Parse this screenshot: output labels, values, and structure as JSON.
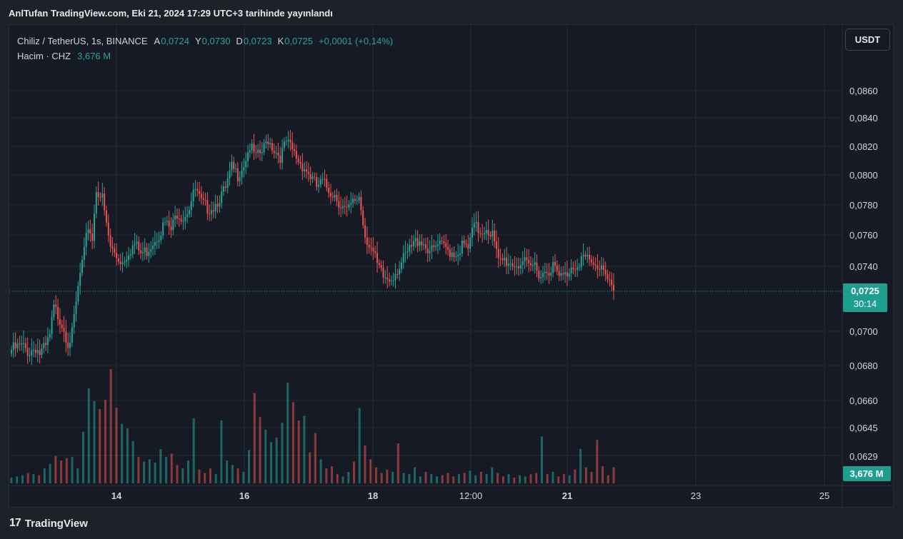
{
  "header": {
    "publish_text": "AnlTufan TradingView.com, Eki 21, 2024 17:29 UTC+3 tarihinde yayınlandı"
  },
  "legend": {
    "symbol": "Chiliz / TetherUS, 1s, BINANCE",
    "open_label": "A",
    "open": "0,0724",
    "high_label": "Y",
    "high": "0,0730",
    "low_label": "D",
    "low": "0,0723",
    "close_label": "K",
    "close": "0,0725",
    "change": "+0,0001 (+0,14%)",
    "volume_label": "Hacim · CHZ",
    "volume_value": "3,676 M"
  },
  "currency_button": "USDT",
  "price_badge": {
    "price": "0,0725",
    "countdown": "30:14"
  },
  "volume_badge": "3,676 M",
  "footer": {
    "brand": "TradingView",
    "logo_mark": "17"
  },
  "colors": {
    "up": "#26a69a",
    "down": "#ef5350",
    "background": "#161a25",
    "grid": "#242a35",
    "axis_text": "#d1d4dc"
  },
  "chart_data": {
    "type": "candlestick",
    "symbol": "Chiliz / TetherUS",
    "interval": "1s",
    "exchange": "BINANCE",
    "grid": true,
    "x_tick_labels": [
      "14",
      "16",
      "18",
      "12:00",
      "21",
      "23",
      "25"
    ],
    "y_tick_labels": [
      "0,0860",
      "0,0840",
      "0,0820",
      "0,0800",
      "0,0780",
      "0,0760",
      "0,0740",
      "0,0700",
      "0,0680",
      "0,0660",
      "0,0645",
      "0,0629"
    ],
    "last_price": 0.0725,
    "volume_last": "3,676 M",
    "close_path": [
      [
        0,
        0.0689
      ],
      [
        5,
        0.0691
      ],
      [
        9,
        0.0688
      ],
      [
        12,
        0.0691
      ],
      [
        14,
        0.0687
      ],
      [
        17,
        0.069
      ],
      [
        19,
        0.0697
      ],
      [
        21,
        0.0714
      ],
      [
        24,
        0.0708
      ],
      [
        26,
        0.0702
      ],
      [
        28,
        0.0694
      ],
      [
        30,
        0.0698
      ],
      [
        32,
        0.0717
      ],
      [
        34,
        0.0735
      ],
      [
        36,
        0.0748
      ],
      [
        38,
        0.0766
      ],
      [
        40,
        0.0758
      ],
      [
        42,
        0.0791
      ],
      [
        45,
        0.0784
      ],
      [
        47,
        0.0766
      ],
      [
        49,
        0.0752
      ],
      [
        52,
        0.0746
      ],
      [
        55,
        0.0743
      ],
      [
        58,
        0.075
      ],
      [
        61,
        0.0754
      ],
      [
        64,
        0.0748
      ],
      [
        67,
        0.075
      ],
      [
        70,
        0.0756
      ],
      [
        73,
        0.0761
      ],
      [
        76,
        0.0768
      ],
      [
        79,
        0.0763
      ],
      [
        82,
        0.0775
      ],
      [
        85,
        0.0772
      ],
      [
        88,
        0.0779
      ],
      [
        91,
        0.079
      ],
      [
        94,
        0.0781
      ],
      [
        97,
        0.0778
      ],
      [
        100,
        0.0779
      ],
      [
        103,
        0.0785
      ],
      [
        106,
        0.079
      ],
      [
        109,
        0.0805
      ],
      [
        112,
        0.08
      ],
      [
        115,
        0.0808
      ],
      [
        118,
        0.082
      ],
      [
        121,
        0.0812
      ],
      [
        124,
        0.0816
      ],
      [
        127,
        0.0825
      ],
      [
        130,
        0.0818
      ],
      [
        133,
        0.0813
      ],
      [
        136,
        0.0823
      ],
      [
        139,
        0.0817
      ],
      [
        142,
        0.081
      ],
      [
        145,
        0.0805
      ],
      [
        148,
        0.0799
      ],
      [
        151,
        0.0792
      ],
      [
        154,
        0.0795
      ],
      [
        157,
        0.079
      ],
      [
        160,
        0.0787
      ],
      [
        163,
        0.078
      ],
      [
        166,
        0.0775
      ],
      [
        169,
        0.0781
      ],
      [
        172,
        0.0786
      ],
      [
        175,
        0.076
      ],
      [
        178,
        0.0752
      ],
      [
        181,
        0.074
      ],
      [
        184,
        0.0733
      ],
      [
        187,
        0.0732
      ],
      [
        190,
        0.0737
      ],
      [
        193,
        0.0742
      ],
      [
        196,
        0.0748
      ],
      [
        199,
        0.0754
      ],
      [
        202,
        0.0758
      ],
      [
        205,
        0.0753
      ],
      [
        208,
        0.0749
      ],
      [
        211,
        0.0753
      ],
      [
        214,
        0.0752
      ],
      [
        217,
        0.075
      ],
      [
        220,
        0.0748
      ],
      [
        223,
        0.0753
      ],
      [
        226,
        0.0751
      ],
      [
        229,
        0.0766
      ],
      [
        232,
        0.0762
      ],
      [
        235,
        0.0765
      ],
      [
        238,
        0.076
      ],
      [
        241,
        0.0742
      ],
      [
        244,
        0.0744
      ],
      [
        247,
        0.0742
      ],
      [
        250,
        0.0741
      ],
      [
        253,
        0.0743
      ],
      [
        256,
        0.0738
      ],
      [
        259,
        0.0741
      ],
      [
        262,
        0.0735
      ],
      [
        265,
        0.0738
      ],
      [
        268,
        0.074
      ],
      [
        271,
        0.0733
      ],
      [
        274,
        0.0734
      ],
      [
        277,
        0.074
      ],
      [
        280,
        0.0742
      ],
      [
        283,
        0.0746
      ],
      [
        286,
        0.0742
      ],
      [
        289,
        0.0739
      ],
      [
        292,
        0.0741
      ],
      [
        295,
        0.0735
      ],
      [
        298,
        0.0725
      ]
    ],
    "volume_relative": [
      0.05,
      0.06,
      0.07,
      0.09,
      0.08,
      0.07,
      0.13,
      0.17,
      0.24,
      0.2,
      0.22,
      0.23,
      0.13,
      0.45,
      0.83,
      0.72,
      0.65,
      0.73,
      1.0,
      0.66,
      0.52,
      0.48,
      0.37,
      0.23,
      0.19,
      0.21,
      0.18,
      0.3,
      0.23,
      0.26,
      0.16,
      0.13,
      0.2,
      0.57,
      0.12,
      0.09,
      0.13,
      0.08,
      0.55,
      0.2,
      0.16,
      0.13,
      0.1,
      0.29,
      0.79,
      0.58,
      0.47,
      0.36,
      0.4,
      0.53,
      0.88,
      0.71,
      0.55,
      0.59,
      0.27,
      0.44,
      0.21,
      0.13,
      0.15,
      0.08,
      0.06,
      0.1,
      0.19,
      0.66,
      0.33,
      0.21,
      0.14,
      0.09,
      0.12,
      0.1,
      0.35,
      0.09,
      0.08,
      0.14,
      0.06,
      0.1,
      0.08,
      0.06,
      0.07,
      0.09,
      0.06,
      0.08,
      0.09,
      0.11,
      0.07,
      0.1,
      0.08,
      0.14,
      0.09,
      0.06,
      0.08,
      0.05,
      0.07,
      0.06,
      0.08,
      0.09,
      0.41,
      0.08,
      0.1,
      0.06,
      0.08,
      0.07,
      0.12,
      0.3,
      0.14,
      0.1,
      0.38,
      0.15,
      0.07,
      0.14
    ]
  }
}
